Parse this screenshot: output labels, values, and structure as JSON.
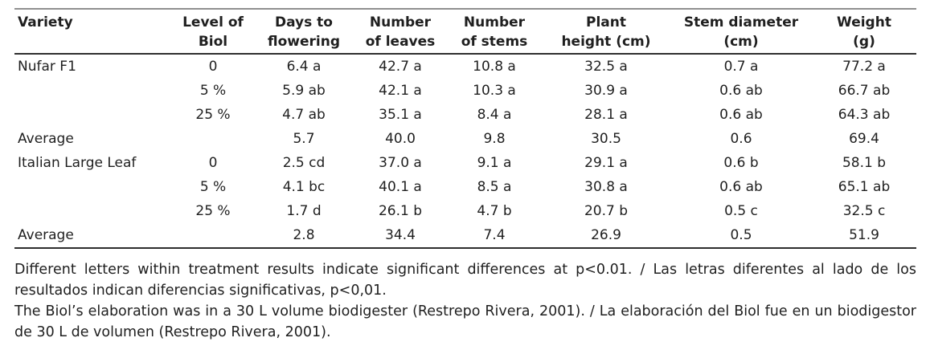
{
  "table": {
    "headers": [
      {
        "lines": [
          "Variety"
        ]
      },
      {
        "lines": [
          "Level of",
          "Biol"
        ]
      },
      {
        "lines": [
          "Days to",
          "flowering"
        ]
      },
      {
        "lines": [
          "Number",
          "of leaves"
        ]
      },
      {
        "lines": [
          "Number",
          "of stems"
        ]
      },
      {
        "lines": [
          "Plant",
          "height (cm)"
        ]
      },
      {
        "lines": [
          "Stem diameter",
          "(cm)"
        ]
      },
      {
        "lines": [
          "Weight",
          "(g)"
        ]
      }
    ],
    "rows": [
      [
        "Nufar F1",
        "0",
        "6.4 a",
        "42.7 a",
        "10.8 a",
        "32.5 a",
        "0.7 a",
        "77.2 a"
      ],
      [
        "",
        "5 %",
        "5.9 ab",
        "42.1 a",
        "10.3 a",
        "30.9 a",
        "0.6 ab",
        "66.7 ab"
      ],
      [
        "",
        "25 %",
        "4.7 ab",
        "35.1 a",
        "8.4 a",
        "28.1 a",
        "0.6 ab",
        "64.3 ab"
      ],
      [
        "Average",
        "",
        "5.7",
        "40.0",
        "9.8",
        "30.5",
        "0.6",
        "69.4"
      ],
      [
        "Italian Large Leaf",
        "0",
        "2.5 cd",
        "37.0 a",
        "9.1 a",
        "29.1 a",
        "0.6 b",
        "58.1 b"
      ],
      [
        "",
        "5 %",
        "4.1 bc",
        "40.1 a",
        "8.5 a",
        "30.8 a",
        "0.6 ab",
        "65.1 ab"
      ],
      [
        "",
        "25 %",
        "1.7 d",
        "26.1 b",
        "4.7 b",
        "20.7 b",
        "0.5 c",
        "32.5 c"
      ],
      [
        "Average",
        "",
        "2.8",
        "34.4",
        "7.4",
        "26.9",
        "0.5",
        "51.9"
      ]
    ]
  },
  "footnotes": [
    "Different letters within treatment results indicate significant differences at p<0.01. / Las letras diferentes al lado de los resultados indican diferencias significativas, p<0,01.",
    "The Biol’s elaboration was in a 30 L volume biodigester (Restrepo Rivera, 2001). / La elaboración del Biol fue en un biodigestor de 30 L de volumen (Restrepo Rivera, 2001)."
  ]
}
